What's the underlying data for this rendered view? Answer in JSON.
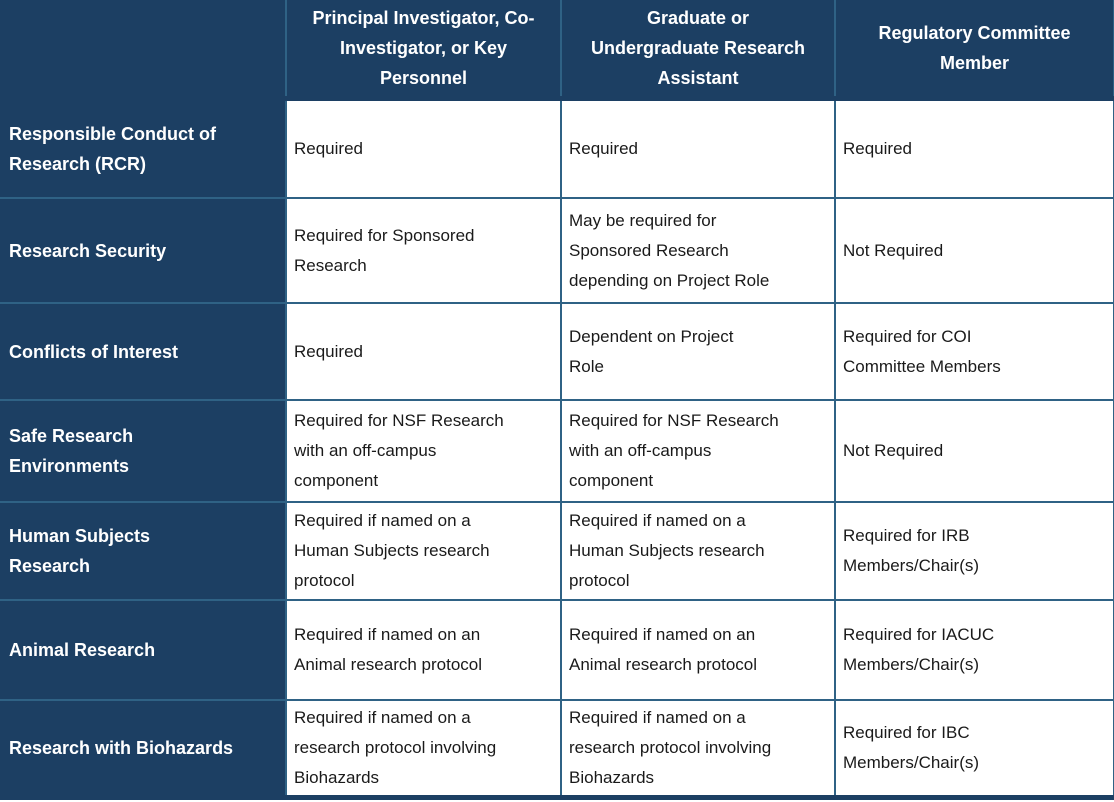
{
  "colors": {
    "header_bg": "#1C3F63",
    "grid_border": "#2F6285",
    "cell_bg": "#FFFFFF",
    "header_text": "#FFFFFF",
    "body_text": "#1A1A1A"
  },
  "table": {
    "corner": "",
    "columns": [
      "Principal Investigator, Co-\nInvestigator, or Key\nPersonnel",
      "Graduate or\nUndergraduate Research\nAssistant",
      "Regulatory Committee\nMember"
    ],
    "rows": [
      {
        "label": "Responsible Conduct of\nResearch (RCR)",
        "cells": [
          "Required",
          "Required",
          "Required"
        ]
      },
      {
        "label": "Research Security",
        "cells": [
          "Required for Sponsored\nResearch",
          "May be required for\nSponsored Research\ndepending on Project Role",
          "Not Required"
        ]
      },
      {
        "label": "Conflicts of Interest",
        "cells": [
          "Required",
          "Dependent on Project\nRole",
          "Required for COI\nCommittee Members"
        ]
      },
      {
        "label": "Safe Research\nEnvironments",
        "cells": [
          "Required for NSF Research\nwith an off-campus\ncomponent",
          "Required for NSF Research\nwith an off-campus\ncomponent",
          "Not Required"
        ]
      },
      {
        "label": "Human Subjects\nResearch",
        "cells": [
          "Required if named on a\nHuman Subjects research\nprotocol",
          "Required if named on a\nHuman Subjects research\nprotocol",
          "Required for IRB\nMembers/Chair(s)"
        ]
      },
      {
        "label": "Animal Research",
        "cells": [
          "Required if named on an\nAnimal research protocol",
          "Required if named on an\nAnimal research protocol",
          "Required for IACUC\nMembers/Chair(s)"
        ]
      },
      {
        "label": "Research with Biohazards",
        "cells": [
          "Required if named on a\nresearch protocol involving\nBiohazards",
          "Required if named on a\nresearch protocol involving\nBiohazards",
          "Required for IBC\nMembers/Chair(s)"
        ]
      }
    ]
  }
}
